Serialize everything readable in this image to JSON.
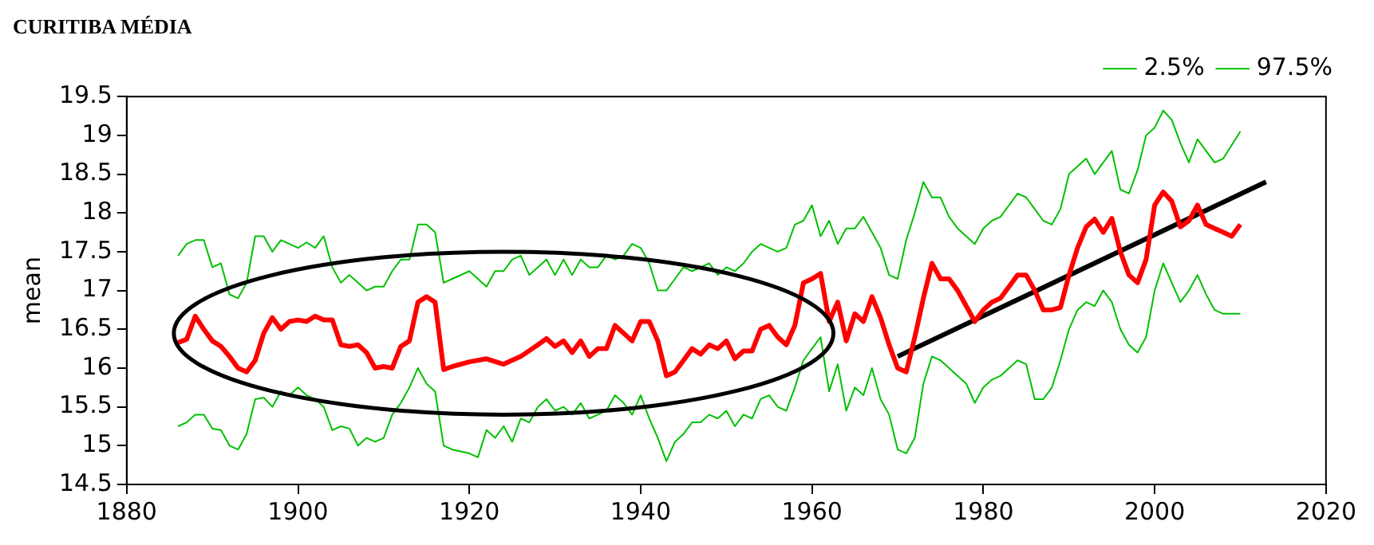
{
  "chart_data": {
    "type": "line",
    "title": "CURITIBA MÉDIA",
    "ylabel": "mean",
    "xlim": [
      1880,
      2020
    ],
    "xticks": [
      1880,
      1900,
      1920,
      1940,
      1960,
      1980,
      2000,
      2020
    ],
    "ylim": [
      14.5,
      19.5
    ],
    "yticks": [
      14.5,
      15,
      15.5,
      16,
      16.5,
      17,
      17.5,
      18,
      18.5,
      19,
      19.5
    ],
    "grid": false,
    "legend": "top right",
    "marker": "none",
    "line_style": "solid",
    "series": [
      {
        "color": "#ff0000",
        "x": [
          1886,
          1887,
          1888,
          1889,
          1890,
          1891,
          1892,
          1893,
          1894,
          1895,
          1896,
          1897,
          1898,
          1899,
          1900,
          1901,
          1902,
          1903,
          1904,
          1905,
          1906,
          1907,
          1908,
          1909,
          1910,
          1911,
          1912,
          1913,
          1914,
          1915,
          1916,
          1917,
          1918,
          1920,
          1922,
          1924,
          1926,
          1928,
          1929,
          1930,
          1931,
          1932,
          1933,
          1934,
          1935,
          1936,
          1937,
          1938,
          1939,
          1940,
          1941,
          1942,
          1943,
          1944,
          1945,
          1946,
          1947,
          1948,
          1949,
          1950,
          1951,
          1952,
          1953,
          1954,
          1955,
          1956,
          1957,
          1958,
          1959,
          1960,
          1961,
          1962,
          1963,
          1964,
          1965,
          1966,
          1967,
          1968,
          1969,
          1970,
          1971,
          1972,
          1973,
          1974,
          1975,
          1976,
          1977,
          1978,
          1979,
          1980,
          1981,
          1982,
          1983,
          1984,
          1985,
          1986,
          1987,
          1988,
          1989,
          1990,
          1991,
          1992,
          1993,
          1994,
          1995,
          1996,
          1997,
          1998,
          1999,
          2000,
          2001,
          2002,
          2003,
          2004,
          2005,
          2006,
          2007,
          2008,
          2009,
          2010
        ],
        "values": [
          16.33,
          16.37,
          16.67,
          16.5,
          16.35,
          16.28,
          16.15,
          16.0,
          15.95,
          16.1,
          16.45,
          16.65,
          16.5,
          16.6,
          16.62,
          16.6,
          16.67,
          16.62,
          16.62,
          16.3,
          16.28,
          16.3,
          16.2,
          16.0,
          16.02,
          16.0,
          16.28,
          16.35,
          16.85,
          16.92,
          16.85,
          15.98,
          16.02,
          16.08,
          16.12,
          16.05,
          16.15,
          16.3,
          16.38,
          16.28,
          16.35,
          16.2,
          16.35,
          16.15,
          16.25,
          16.25,
          16.55,
          16.45,
          16.35,
          16.6,
          16.6,
          16.35,
          15.9,
          15.95,
          16.1,
          16.25,
          16.18,
          16.3,
          16.25,
          16.35,
          16.12,
          16.22,
          16.22,
          16.5,
          16.55,
          16.4,
          16.3,
          16.55,
          17.1,
          17.15,
          17.22,
          16.6,
          16.85,
          16.35,
          16.7,
          16.6,
          16.92,
          16.65,
          16.3,
          16.0,
          15.95,
          16.4,
          16.9,
          17.35,
          17.15,
          17.15,
          17.0,
          16.8,
          16.6,
          16.75,
          16.85,
          16.9,
          17.05,
          17.2,
          17.2,
          17.0,
          16.75,
          16.75,
          16.78,
          17.2,
          17.55,
          17.82,
          17.92,
          17.75,
          17.93,
          17.5,
          17.2,
          17.1,
          17.4,
          18.1,
          18.27,
          18.15,
          17.82,
          17.9,
          18.1,
          17.85,
          17.8,
          17.75,
          17.7,
          17.85
        ]
      },
      {
        "name": "2.5%",
        "color": "#00c000",
        "x": [
          1886,
          1887,
          1888,
          1889,
          1890,
          1891,
          1892,
          1893,
          1894,
          1895,
          1896,
          1897,
          1898,
          1899,
          1900,
          1901,
          1902,
          1903,
          1904,
          1905,
          1906,
          1907,
          1908,
          1909,
          1910,
          1911,
          1912,
          1913,
          1914,
          1915,
          1916,
          1917,
          1918,
          1920,
          1921,
          1922,
          1923,
          1924,
          1925,
          1926,
          1927,
          1928,
          1929,
          1930,
          1931,
          1932,
          1933,
          1934,
          1935,
          1936,
          1937,
          1938,
          1939,
          1940,
          1941,
          1942,
          1943,
          1944,
          1945,
          1946,
          1947,
          1948,
          1949,
          1950,
          1951,
          1952,
          1953,
          1954,
          1955,
          1956,
          1957,
          1958,
          1959,
          1960,
          1961,
          1962,
          1963,
          1964,
          1965,
          1966,
          1967,
          1968,
          1969,
          1970,
          1971,
          1972,
          1973,
          1974,
          1975,
          1976,
          1977,
          1978,
          1979,
          1980,
          1981,
          1982,
          1983,
          1984,
          1985,
          1986,
          1987,
          1988,
          1989,
          1990,
          1991,
          1992,
          1993,
          1994,
          1995,
          1996,
          1997,
          1998,
          1999,
          2000,
          2001,
          2002,
          2003,
          2004,
          2005,
          2006,
          2007,
          2008,
          2010
        ],
        "values": [
          15.25,
          15.3,
          15.4,
          15.4,
          15.22,
          15.2,
          15.0,
          14.95,
          15.15,
          15.6,
          15.62,
          15.5,
          15.7,
          15.65,
          15.75,
          15.65,
          15.6,
          15.5,
          15.2,
          15.25,
          15.22,
          15.0,
          15.1,
          15.05,
          15.1,
          15.4,
          15.55,
          15.75,
          16.0,
          15.8,
          15.7,
          15.0,
          14.95,
          14.9,
          14.85,
          15.2,
          15.1,
          15.25,
          15.05,
          15.35,
          15.3,
          15.5,
          15.6,
          15.45,
          15.5,
          15.4,
          15.55,
          15.35,
          15.4,
          15.45,
          15.65,
          15.55,
          15.4,
          15.65,
          15.35,
          15.1,
          14.8,
          15.05,
          15.15,
          15.3,
          15.3,
          15.4,
          15.35,
          15.45,
          15.25,
          15.4,
          15.35,
          15.6,
          15.65,
          15.5,
          15.45,
          15.75,
          16.1,
          16.25,
          16.4,
          15.7,
          16.05,
          15.45,
          15.75,
          15.65,
          16.0,
          15.6,
          15.4,
          14.95,
          14.9,
          15.1,
          15.8,
          16.15,
          16.1,
          16.0,
          15.9,
          15.8,
          15.55,
          15.75,
          15.85,
          15.9,
          16.0,
          16.1,
          16.05,
          15.6,
          15.6,
          15.75,
          16.1,
          16.5,
          16.75,
          16.85,
          16.8,
          17.0,
          16.85,
          16.5,
          16.3,
          16.2,
          16.4,
          17.0,
          17.35,
          17.1,
          16.85,
          17.0,
          17.2,
          16.95,
          16.75,
          16.7,
          16.7
        ]
      },
      {
        "name": "97.5%",
        "color": "#00c000",
        "x": [
          1886,
          1887,
          1888,
          1889,
          1890,
          1891,
          1892,
          1893,
          1894,
          1895,
          1896,
          1897,
          1898,
          1899,
          1900,
          1901,
          1902,
          1903,
          1904,
          1905,
          1906,
          1907,
          1908,
          1909,
          1910,
          1911,
          1912,
          1913,
          1914,
          1915,
          1916,
          1917,
          1918,
          1920,
          1921,
          1922,
          1923,
          1924,
          1925,
          1926,
          1927,
          1928,
          1929,
          1930,
          1931,
          1932,
          1933,
          1934,
          1935,
          1936,
          1937,
          1938,
          1939,
          1940,
          1941,
          1942,
          1943,
          1944,
          1945,
          1946,
          1947,
          1948,
          1949,
          1950,
          1951,
          1952,
          1953,
          1954,
          1955,
          1956,
          1957,
          1958,
          1959,
          1960,
          1961,
          1962,
          1963,
          1964,
          1965,
          1966,
          1967,
          1968,
          1969,
          1970,
          1971,
          1972,
          1973,
          1974,
          1975,
          1976,
          1977,
          1978,
          1979,
          1980,
          1981,
          1982,
          1983,
          1984,
          1985,
          1986,
          1987,
          1988,
          1989,
          1990,
          1991,
          1992,
          1993,
          1994,
          1995,
          1996,
          1997,
          1998,
          1999,
          2000,
          2001,
          2002,
          2003,
          2004,
          2005,
          2006,
          2007,
          2008,
          2010
        ],
        "values": [
          17.45,
          17.6,
          17.65,
          17.65,
          17.3,
          17.35,
          16.95,
          16.9,
          17.1,
          17.7,
          17.7,
          17.5,
          17.65,
          17.6,
          17.55,
          17.62,
          17.55,
          17.7,
          17.3,
          17.1,
          17.2,
          17.1,
          17.0,
          17.05,
          17.05,
          17.25,
          17.4,
          17.4,
          17.85,
          17.85,
          17.75,
          17.1,
          17.15,
          17.25,
          17.15,
          17.05,
          17.25,
          17.25,
          17.4,
          17.45,
          17.2,
          17.3,
          17.4,
          17.2,
          17.4,
          17.2,
          17.4,
          17.3,
          17.3,
          17.45,
          17.4,
          17.45,
          17.6,
          17.55,
          17.35,
          17.0,
          17.0,
          17.15,
          17.3,
          17.25,
          17.3,
          17.35,
          17.2,
          17.3,
          17.25,
          17.35,
          17.5,
          17.6,
          17.55,
          17.5,
          17.55,
          17.85,
          17.9,
          18.1,
          17.7,
          17.9,
          17.6,
          17.8,
          17.8,
          17.95,
          17.75,
          17.55,
          17.2,
          17.15,
          17.65,
          18.0,
          18.4,
          18.2,
          18.2,
          17.95,
          17.8,
          17.7,
          17.6,
          17.8,
          17.9,
          17.95,
          18.1,
          18.25,
          18.2,
          18.05,
          17.9,
          17.85,
          18.05,
          18.5,
          18.6,
          18.7,
          18.5,
          18.65,
          18.8,
          18.3,
          18.25,
          18.55,
          19.0,
          19.1,
          19.32,
          19.2,
          18.9,
          18.65,
          18.95,
          18.8,
          18.65,
          18.7,
          19.05
        ]
      },
      {
        "color": "#000000",
        "x": [
          1970,
          2013
        ],
        "values": [
          16.15,
          18.4
        ]
      }
    ]
  }
}
